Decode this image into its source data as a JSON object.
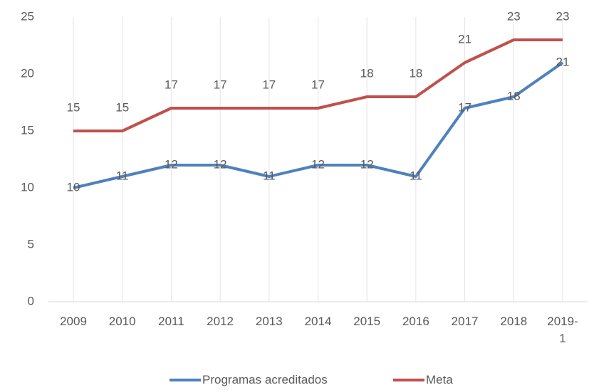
{
  "chart_data": {
    "type": "line",
    "categories": [
      "2009",
      "2010",
      "2011",
      "2012",
      "2013",
      "2014",
      "2015",
      "2016",
      "2017",
      "2018",
      "2019-1"
    ],
    "series": [
      {
        "name": "Programas acreditados",
        "color": "#4f81bd",
        "values": [
          10,
          11,
          12,
          12,
          11,
          12,
          12,
          11,
          17,
          18,
          21
        ]
      },
      {
        "name": "Meta",
        "color": "#c0504d",
        "values": [
          15,
          15,
          17,
          17,
          17,
          17,
          18,
          18,
          21,
          23,
          23
        ]
      }
    ],
    "ylim": [
      0,
      25
    ],
    "yticks": [
      0,
      5,
      10,
      15,
      20,
      25
    ],
    "grid": true,
    "legend": "bottom"
  }
}
